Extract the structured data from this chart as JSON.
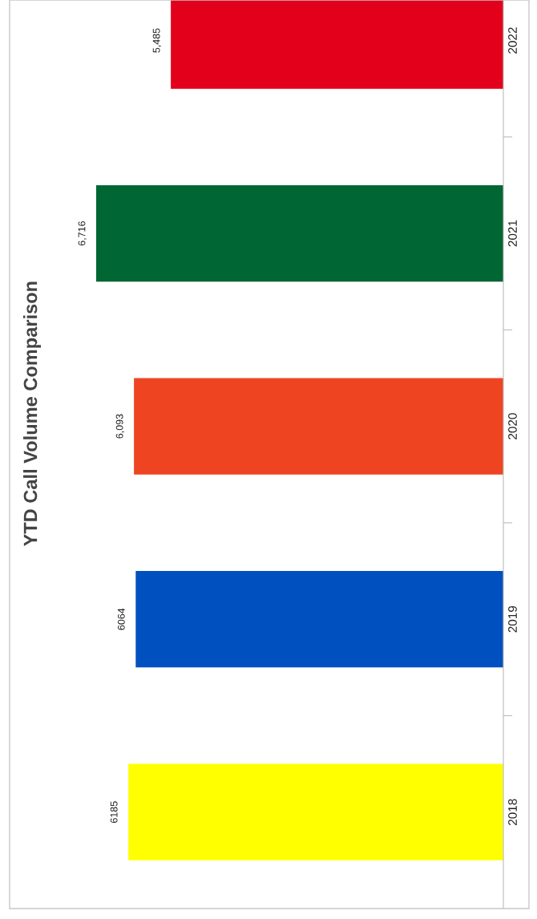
{
  "chart_data": {
    "type": "bar",
    "orientation": "horizontal",
    "title": "YTD Call Volume Comparison",
    "categories": [
      "2022",
      "2021",
      "2020",
      "2019",
      "2018"
    ],
    "values": [
      5485,
      6716,
      6093,
      6064,
      6185
    ],
    "value_labels": [
      "5,485",
      "6,716",
      "6,093",
      "6064",
      "6185"
    ],
    "colors": [
      "#e3001b",
      "#006633",
      "#ee4422",
      "#0050c0",
      "#ffff00"
    ],
    "grid": false,
    "legend": false
  }
}
